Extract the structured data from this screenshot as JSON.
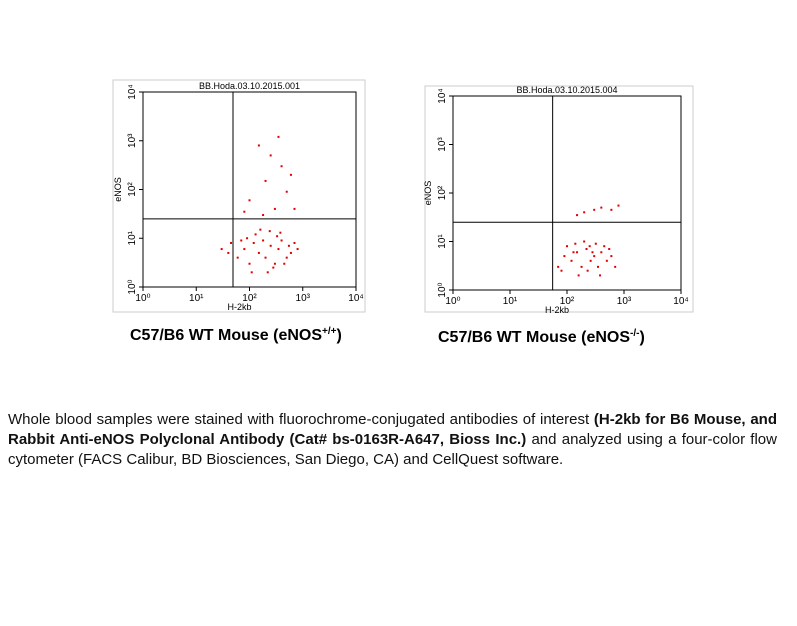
{
  "chart_data": [
    {
      "type": "scatter",
      "title": "BB.Hoda.03.10.2015.001",
      "x_label": "H-2kb",
      "y_label": "eNOS",
      "log_x": true,
      "log_y": true,
      "color": "#e00000",
      "xlim": [
        1,
        10000
      ],
      "ylim": [
        1,
        10000
      ],
      "xticks": [
        {
          "value": 1,
          "label": "10⁰"
        },
        {
          "value": 10,
          "label": "10¹"
        },
        {
          "value": 100,
          "label": "10²"
        },
        {
          "value": 1000,
          "label": "10³"
        },
        {
          "value": 10000,
          "label": "10⁴"
        }
      ],
      "yticks": [
        {
          "value": 1,
          "label": "10⁰"
        },
        {
          "value": 10,
          "label": "10¹"
        },
        {
          "value": 100,
          "label": "10²"
        },
        {
          "value": 1000,
          "label": "10³"
        },
        {
          "value": 10000,
          "label": "10⁴"
        }
      ],
      "quadrant_x": 49,
      "quadrant_y": 25,
      "x": [
        40,
        60,
        80,
        100,
        120,
        150,
        200,
        250,
        300,
        350,
        400,
        500,
        600,
        700,
        30,
        45,
        90,
        130,
        180,
        220,
        280,
        330,
        450,
        550,
        160,
        240,
        380,
        800,
        110,
        70,
        100,
        200,
        300,
        400,
        150,
        250,
        500,
        600,
        80,
        350,
        180,
        700
      ],
      "y": [
        5,
        4,
        6,
        3,
        8,
        5,
        4,
        7,
        3,
        6,
        9,
        4,
        5,
        8,
        6,
        8,
        10,
        12,
        9,
        2,
        2.5,
        11,
        3,
        7,
        15,
        14,
        13,
        6,
        2,
        9,
        60,
        150,
        40,
        300,
        800,
        500,
        90,
        200,
        35,
        1200,
        30,
        40
      ],
      "caption": {
        "text": "C57/B6 WT Mouse (eNOS",
        "sup": "+/+",
        "close": ")"
      }
    },
    {
      "type": "scatter",
      "title": "BB.Hoda.03.10.2015.004",
      "x_label": "H-2kb",
      "y_label": "eNOS",
      "log_x": true,
      "log_y": true,
      "color": "#e00000",
      "xlim": [
        1,
        10000
      ],
      "ylim": [
        1,
        10000
      ],
      "xticks": [
        {
          "value": 1,
          "label": "10⁰"
        },
        {
          "value": 10,
          "label": "10¹"
        },
        {
          "value": 100,
          "label": "10²"
        },
        {
          "value": 1000,
          "label": "10³"
        },
        {
          "value": 10000,
          "label": "10⁴"
        }
      ],
      "yticks": [
        {
          "value": 1,
          "label": "10⁰"
        },
        {
          "value": 10,
          "label": "10¹"
        },
        {
          "value": 100,
          "label": "10²"
        },
        {
          "value": 1000,
          "label": "10³"
        },
        {
          "value": 10000,
          "label": "10⁴"
        }
      ],
      "quadrant_x": 56,
      "quadrant_y": 25,
      "x": [
        70,
        90,
        120,
        150,
        180,
        220,
        260,
        300,
        350,
        400,
        500,
        600,
        700,
        100,
        140,
        200,
        250,
        320,
        450,
        80,
        160,
        230,
        380,
        550,
        130,
        280,
        200,
        300,
        400,
        600,
        800,
        150
      ],
      "y": [
        3,
        5,
        4,
        6,
        3,
        7,
        4,
        5,
        3,
        6,
        4,
        5,
        3,
        8,
        9,
        10,
        8,
        9,
        8,
        2.5,
        2,
        2.5,
        2,
        7,
        6,
        6,
        40,
        45,
        50,
        45,
        55,
        35
      ],
      "caption": {
        "text": "C57/B6 WT Mouse (eNOS",
        "sup": "-/-",
        "close": ")"
      }
    }
  ],
  "paragraph": [
    {
      "text": "Whole blood samples were stained with fluorochrome-conjugated antibodies of interest ",
      "bold": false
    },
    {
      "text": "(H-2kb for B6 Mouse, and Rabbit Anti-eNOS Polyclonal Antibody (Cat# bs-0163R-A647, Bioss Inc.)",
      "bold": true
    },
    {
      "text": " and analyzed using a four-color flow cytometer (FACS Calibur, BD Biosciences, San Diego, CA) and CellQuest software.",
      "bold": false
    }
  ]
}
